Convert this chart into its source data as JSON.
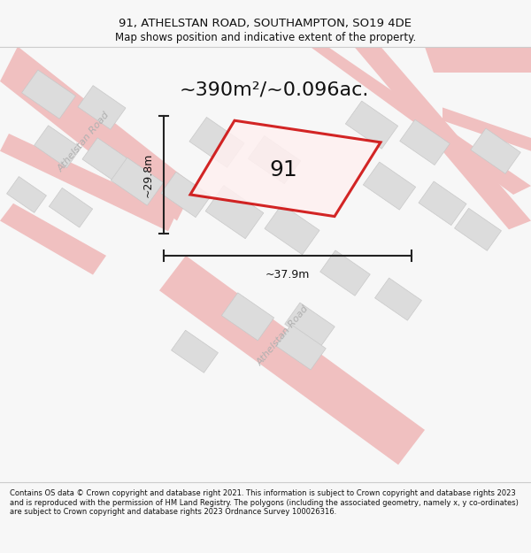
{
  "title_line1": "91, ATHELSTAN ROAD, SOUTHAMPTON, SO19 4DE",
  "title_line2": "Map shows position and indicative extent of the property.",
  "area_text": "~390m²/~0.096ac.",
  "property_number": "91",
  "dim_vertical": "~29.8m",
  "dim_horizontal": "~37.9m",
  "footer_text": "Contains OS data © Crown copyright and database right 2021. This information is subject to Crown copyright and database rights 2023 and is reproduced with the permission of HM Land Registry. The polygons (including the associated geometry, namely x, y co-ordinates) are subject to Crown copyright and database rights 2023 Ordnance Survey 100026316.",
  "bg_color": "#f7f7f7",
  "map_bg": "#efefef",
  "road_color": "#f0c0c0",
  "building_color": "#dcdcdc",
  "building_edge": "#c8c8c8",
  "property_fill": "#fff0f0",
  "property_outline_color": "#cc0000",
  "dim_line_color": "#222222",
  "road_label_color": "#b0b0b0",
  "title_color": "#111111",
  "footer_color": "#111111"
}
